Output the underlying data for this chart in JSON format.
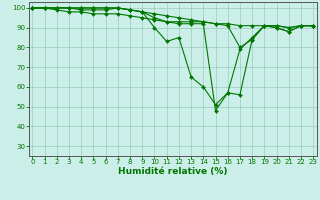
{
  "xlabel": "Humidité relative (%)",
  "bg_color": "#cceee8",
  "grid_color": "#99ccbb",
  "line_color": "#007700",
  "spine_color": "#555555",
  "x_ticks": [
    0,
    1,
    2,
    3,
    4,
    5,
    6,
    7,
    8,
    9,
    10,
    11,
    12,
    13,
    14,
    15,
    16,
    17,
    18,
    19,
    20,
    21,
    22,
    23
  ],
  "y_ticks": [
    30,
    40,
    50,
    60,
    70,
    80,
    90,
    100
  ],
  "xlim": [
    -0.3,
    23.3
  ],
  "ylim": [
    25,
    103
  ],
  "tick_fontsize": 5.0,
  "xlabel_fontsize": 6.5,
  "series": [
    [
      100,
      100,
      100,
      100,
      100,
      100,
      100,
      100,
      99,
      98,
      90,
      83,
      85,
      65,
      60,
      51,
      57,
      79,
      85,
      91,
      90,
      88,
      91,
      91
    ],
    [
      100,
      100,
      99,
      98,
      98,
      97,
      97,
      97,
      96,
      95,
      94,
      93,
      92,
      92,
      92,
      48,
      57,
      56,
      84,
      91,
      91,
      90,
      91,
      91
    ],
    [
      100,
      100,
      100,
      100,
      99,
      99,
      99,
      100,
      99,
      98,
      97,
      96,
      95,
      94,
      93,
      92,
      91,
      80,
      84,
      91,
      90,
      88,
      91,
      91
    ],
    [
      100,
      100,
      100,
      100,
      100,
      100,
      100,
      100,
      99,
      98,
      95,
      93,
      93,
      93,
      93,
      92,
      92,
      91,
      91,
      91,
      91,
      90,
      91,
      91
    ]
  ]
}
